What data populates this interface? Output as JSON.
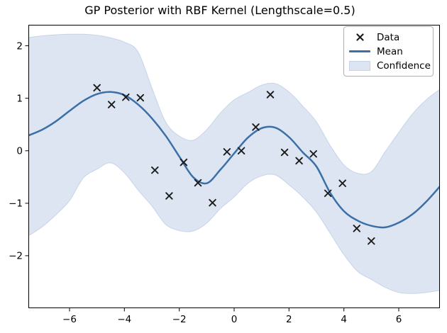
{
  "title": "GP Posterior with RBF Kernel (Lengthscale=0.5)",
  "legend": {
    "position": "upper right",
    "items": [
      {
        "label": "Data",
        "swatch": "x-marker"
      },
      {
        "label": "Mean",
        "swatch": "line"
      },
      {
        "label": "Confidence",
        "swatch": "patch"
      }
    ]
  },
  "colors": {
    "mean_line": "#3a6fa8",
    "band_fill": "#dde5f2",
    "band_edge": "#c7d4e8",
    "marker": "#1c1c1c",
    "axis": "#000000",
    "background": "#ffffff"
  },
  "chart_data": {
    "type": "line",
    "title": "GP Posterior with RBF Kernel (Lengthscale=0.5)",
    "xlabel": "",
    "ylabel": "",
    "xlim": [
      -7.5,
      7.5
    ],
    "ylim": [
      -3.0,
      2.4
    ],
    "xticks": [
      -6,
      -4,
      -2,
      0,
      2,
      4,
      6
    ],
    "yticks": [
      -2,
      -1,
      0,
      1,
      2
    ],
    "xtick_labels": [
      "−6",
      "−4",
      "−2",
      "0",
      "2",
      "4",
      "6"
    ],
    "ytick_labels": [
      "−2",
      "−1",
      "0",
      "1",
      "2"
    ],
    "grid": false,
    "legend_position": "upper right",
    "series": [
      {
        "name": "Data",
        "type": "scatter",
        "marker": "x",
        "x": [
          -5.0,
          -4.47,
          -3.95,
          -3.42,
          -2.89,
          -2.37,
          -1.84,
          -1.32,
          -0.79,
          -0.26,
          0.26,
          0.79,
          1.32,
          1.84,
          2.37,
          2.89,
          3.42,
          3.95,
          4.47,
          5.0
        ],
        "y": [
          1.2,
          0.88,
          1.02,
          1.01,
          -0.37,
          -0.86,
          -0.22,
          -0.61,
          -0.99,
          -0.02,
          0.0,
          0.45,
          1.07,
          -0.03,
          -0.19,
          -0.06,
          -0.81,
          -0.62,
          -1.48,
          -1.72
        ]
      },
      {
        "name": "Mean",
        "type": "line",
        "x": [
          -7.5,
          -7.0,
          -6.5,
          -6.0,
          -5.5,
          -5.0,
          -4.5,
          -4.0,
          -3.5,
          -3.0,
          -2.5,
          -2.0,
          -1.5,
          -1.0,
          -0.5,
          0.0,
          0.5,
          1.0,
          1.5,
          2.0,
          2.5,
          3.0,
          3.5,
          4.0,
          4.5,
          5.0,
          5.5,
          6.0,
          6.5,
          7.0,
          7.5
        ],
        "y": [
          0.29,
          0.4,
          0.56,
          0.76,
          0.95,
          1.08,
          1.12,
          1.06,
          0.88,
          0.62,
          0.29,
          -0.11,
          -0.5,
          -0.62,
          -0.36,
          -0.05,
          0.25,
          0.43,
          0.44,
          0.26,
          -0.03,
          -0.3,
          -0.8,
          -1.15,
          -1.33,
          -1.43,
          -1.46,
          -1.37,
          -1.21,
          -0.97,
          -0.68
        ]
      },
      {
        "name": "Confidence",
        "type": "band",
        "x": [
          -7.5,
          -7.0,
          -6.5,
          -6.0,
          -5.5,
          -5.0,
          -4.5,
          -4.0,
          -3.5,
          -3.0,
          -2.5,
          -2.0,
          -1.5,
          -1.0,
          -0.5,
          0.0,
          0.5,
          1.0,
          1.5,
          2.0,
          2.5,
          3.0,
          3.5,
          4.0,
          4.5,
          5.0,
          5.5,
          6.0,
          6.5,
          7.0,
          7.5
        ],
        "upper": [
          2.16,
          2.19,
          2.21,
          2.22,
          2.22,
          2.2,
          2.15,
          2.07,
          1.88,
          1.2,
          0.55,
          0.28,
          0.2,
          0.4,
          0.72,
          0.97,
          1.11,
          1.25,
          1.28,
          1.12,
          0.85,
          0.55,
          0.1,
          -0.27,
          -0.43,
          -0.4,
          -0.02,
          0.35,
          0.7,
          0.97,
          1.17
        ],
        "lower": [
          -1.62,
          -1.45,
          -1.22,
          -0.95,
          -0.52,
          -0.35,
          -0.23,
          -0.42,
          -0.75,
          -1.05,
          -1.4,
          -1.52,
          -1.53,
          -1.38,
          -1.1,
          -0.88,
          -0.62,
          -0.48,
          -0.46,
          -0.65,
          -0.88,
          -1.17,
          -1.57,
          -1.98,
          -2.3,
          -2.45,
          -2.6,
          -2.7,
          -2.72,
          -2.7,
          -2.66
        ]
      }
    ]
  }
}
